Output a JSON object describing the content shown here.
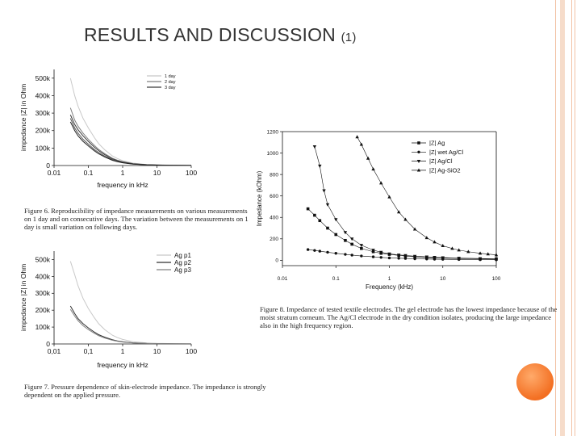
{
  "slide": {
    "title": "RESULTS AND DISCUSSION",
    "title_suffix": "(1)",
    "accent_color": "#f36f22"
  },
  "chart_data": [
    {
      "id": "fig6",
      "type": "line",
      "title": "",
      "xlabel": "frequency in kHz",
      "ylabel": "impedance |Z| in Ohm",
      "xscale": "log",
      "xlim": [
        0.01,
        100
      ],
      "ylim": [
        0,
        550000
      ],
      "xticks": [
        0.01,
        0.1,
        1,
        10,
        100
      ],
      "xtick_labels": [
        "0.01",
        "0.1",
        "1",
        "10",
        "100"
      ],
      "yticks": [
        0,
        100000,
        200000,
        300000,
        400000,
        500000
      ],
      "ytick_labels": [
        "0",
        "100k",
        "200k",
        "300k",
        "400k",
        "500k"
      ],
      "legend_position": "top-right",
      "series": [
        {
          "name": "1 day",
          "color": "#c8c8c8",
          "x": [
            0.03,
            0.04,
            0.05,
            0.07,
            0.1,
            0.15,
            0.2,
            0.3,
            0.5,
            0.7,
            1,
            2,
            5,
            10,
            30,
            100
          ],
          "values": [
            500000,
            400000,
            340000,
            270000,
            215000,
            160000,
            125000,
            90000,
            55000,
            40000,
            28000,
            14000,
            6000,
            4000,
            2000,
            1000
          ]
        },
        {
          "name": "2 day",
          "color": "#808080",
          "x": [
            0.03,
            0.04,
            0.05,
            0.07,
            0.1,
            0.15,
            0.2,
            0.3,
            0.5,
            0.7,
            1,
            2,
            5,
            10,
            30,
            100
          ],
          "values": [
            330000,
            260000,
            225000,
            185000,
            150000,
            115000,
            92000,
            68000,
            42000,
            31000,
            22000,
            11000,
            5000,
            3000,
            1500,
            800
          ]
        },
        {
          "name": "3 day",
          "color": "#3a3a3a",
          "x": [
            0.03,
            0.04,
            0.05,
            0.07,
            0.1,
            0.15,
            0.2,
            0.3,
            0.5,
            0.7,
            1,
            2,
            5,
            10,
            30,
            100
          ],
          "values": [
            290000,
            235000,
            205000,
            170000,
            138000,
            105000,
            85000,
            62000,
            38000,
            28000,
            20000,
            10000,
            4500,
            2800,
            1400,
            700
          ]
        },
        {
          "name": "",
          "color": "#555555",
          "x": [
            0.03,
            0.04,
            0.05,
            0.07,
            0.1,
            0.15,
            0.2,
            0.3,
            0.5,
            0.7,
            1,
            2,
            5,
            10,
            30,
            100
          ],
          "values": [
            270000,
            215000,
            185000,
            150000,
            122000,
            92000,
            74000,
            54000,
            33000,
            24000,
            17000,
            8500,
            4000,
            2400,
            1200,
            600
          ]
        },
        {
          "name": "",
          "color": "#222222",
          "x": [
            0.03,
            0.04,
            0.05,
            0.07,
            0.1,
            0.15,
            0.2,
            0.3,
            0.5,
            0.7,
            1,
            2,
            5,
            10,
            30,
            100
          ],
          "values": [
            250000,
            200000,
            170000,
            138000,
            112000,
            84000,
            67000,
            49000,
            30000,
            22000,
            15500,
            7800,
            3600,
            2200,
            1100,
            550
          ]
        }
      ]
    },
    {
      "id": "fig7",
      "type": "line",
      "title": "",
      "xlabel": "frequency in kHz",
      "ylabel": "impedance |Z| in Ohm",
      "xscale": "log",
      "xlim": [
        0.01,
        100
      ],
      "ylim": [
        0,
        550000
      ],
      "xticks": [
        0.01,
        0.1,
        1,
        10,
        100
      ],
      "xtick_labels": [
        "0,01",
        "0,1",
        "1",
        "10",
        "100"
      ],
      "yticks": [
        0,
        100000,
        200000,
        300000,
        400000,
        500000
      ],
      "ytick_labels": [
        "0",
        "100k",
        "200k",
        "300k",
        "400k",
        "500k"
      ],
      "legend_position": "top-right",
      "series": [
        {
          "name": "Ag p1",
          "color": "#c8c8c8",
          "x": [
            0.03,
            0.04,
            0.05,
            0.07,
            0.1,
            0.15,
            0.2,
            0.3,
            0.5,
            0.7,
            1,
            2,
            5,
            10,
            30,
            100
          ],
          "values": [
            490000,
            410000,
            345000,
            270000,
            210000,
            155000,
            120000,
            85000,
            52000,
            38000,
            27000,
            13000,
            6000,
            3500,
            1800,
            900
          ]
        },
        {
          "name": "Ag p2",
          "color": "#303030",
          "x": [
            0.03,
            0.04,
            0.05,
            0.07,
            0.1,
            0.15,
            0.2,
            0.3,
            0.5,
            0.7,
            1,
            2,
            5,
            10,
            30,
            100
          ],
          "values": [
            225000,
            180000,
            150000,
            120000,
            95000,
            70000,
            55000,
            40000,
            25000,
            18000,
            13000,
            6500,
            3000,
            1800,
            900,
            500
          ]
        },
        {
          "name": "Ag p3",
          "color": "#808080",
          "x": [
            0.03,
            0.04,
            0.05,
            0.07,
            0.1,
            0.15,
            0.2,
            0.3,
            0.5,
            0.7,
            1,
            2,
            5,
            10,
            30,
            100
          ],
          "values": [
            205000,
            165000,
            138000,
            108000,
            85000,
            63000,
            49000,
            35000,
            22000,
            16000,
            11500,
            5800,
            2700,
            1600,
            800,
            450
          ]
        }
      ]
    },
    {
      "id": "fig8",
      "type": "scatter",
      "title": "",
      "xlabel": "Frequency (kHz)",
      "ylabel": "Impedance (kOhm)",
      "xscale": "log",
      "xlim": [
        0.01,
        100
      ],
      "ylim": [
        -50,
        1200
      ],
      "xticks": [
        0.01,
        0.1,
        1,
        10,
        100
      ],
      "xtick_labels": [
        "0.01",
        "0.1",
        "1",
        "10",
        "100"
      ],
      "yticks": [
        0,
        200,
        400,
        600,
        800,
        1000,
        1200
      ],
      "ytick_labels": [
        "0",
        "200",
        "400",
        "600",
        "800",
        "1000",
        "1200"
      ],
      "legend_position": "top-right",
      "series": [
        {
          "name": "|Z| Ag",
          "color": "#111111",
          "marker": "square",
          "x": [
            0.03,
            0.04,
            0.05,
            0.07,
            0.1,
            0.15,
            0.2,
            0.3,
            0.5,
            0.7,
            1,
            1.5,
            2,
            3,
            5,
            7,
            10,
            20,
            50,
            100
          ],
          "values": [
            480,
            420,
            370,
            300,
            240,
            185,
            150,
            110,
            80,
            65,
            55,
            45,
            40,
            32,
            25,
            22,
            20,
            16,
            13,
            11
          ]
        },
        {
          "name": "|Z| wet Ag/Cl",
          "color": "#111111",
          "marker": "circle",
          "x": [
            0.03,
            0.04,
            0.05,
            0.07,
            0.1,
            0.15,
            0.2,
            0.3,
            0.5,
            0.7,
            1,
            1.5,
            2,
            3,
            5,
            7,
            10,
            20,
            50,
            100
          ],
          "values": [
            100,
            92,
            85,
            75,
            65,
            55,
            48,
            40,
            32,
            27,
            22,
            19,
            17,
            14,
            12,
            10,
            9,
            7,
            6,
            5
          ]
        },
        {
          "name": "|Z| Ag/Cl",
          "color": "#111111",
          "marker": "triangle-down",
          "x": [
            0.04,
            0.05,
            0.06,
            0.07,
            0.1,
            0.15,
            0.2,
            0.3,
            0.5,
            0.7,
            1,
            1.5,
            2,
            3,
            5,
            7,
            10,
            20,
            50,
            100
          ],
          "values": [
            1060,
            880,
            650,
            520,
            380,
            260,
            200,
            140,
            95,
            75,
            60,
            50,
            45,
            38,
            32,
            28,
            25,
            20,
            16,
            14
          ]
        },
        {
          "name": "|Z| Ag-SiO2",
          "color": "#111111",
          "marker": "triangle-up",
          "x": [
            0.25,
            0.3,
            0.4,
            0.5,
            0.7,
            1,
            1.5,
            2,
            3,
            5,
            7,
            10,
            15,
            20,
            30,
            50,
            70,
            100
          ],
          "values": [
            1150,
            1080,
            950,
            850,
            720,
            590,
            450,
            380,
            290,
            210,
            170,
            135,
            110,
            95,
            80,
            65,
            58,
            50
          ]
        }
      ]
    }
  ],
  "captions": {
    "fig6": "Figure 6. Reproducibility of impedance measurements on various measurements on 1 day and on consecutive days. The variation between the measurements on 1 day is small variation on following days.",
    "fig7": "Figure 7. Pressure dependence of skin-electrode impedance. The impedance is strongly dependent on the applied pressure.",
    "fig8": "Figure 8. Impedance of tested textile electrodes. The gel electrode has the lowest impedance because of the moist stratum corneum. The Ag/Cl electrode in the dry condition isolates, producing the large impedance also in the high frequency region."
  }
}
